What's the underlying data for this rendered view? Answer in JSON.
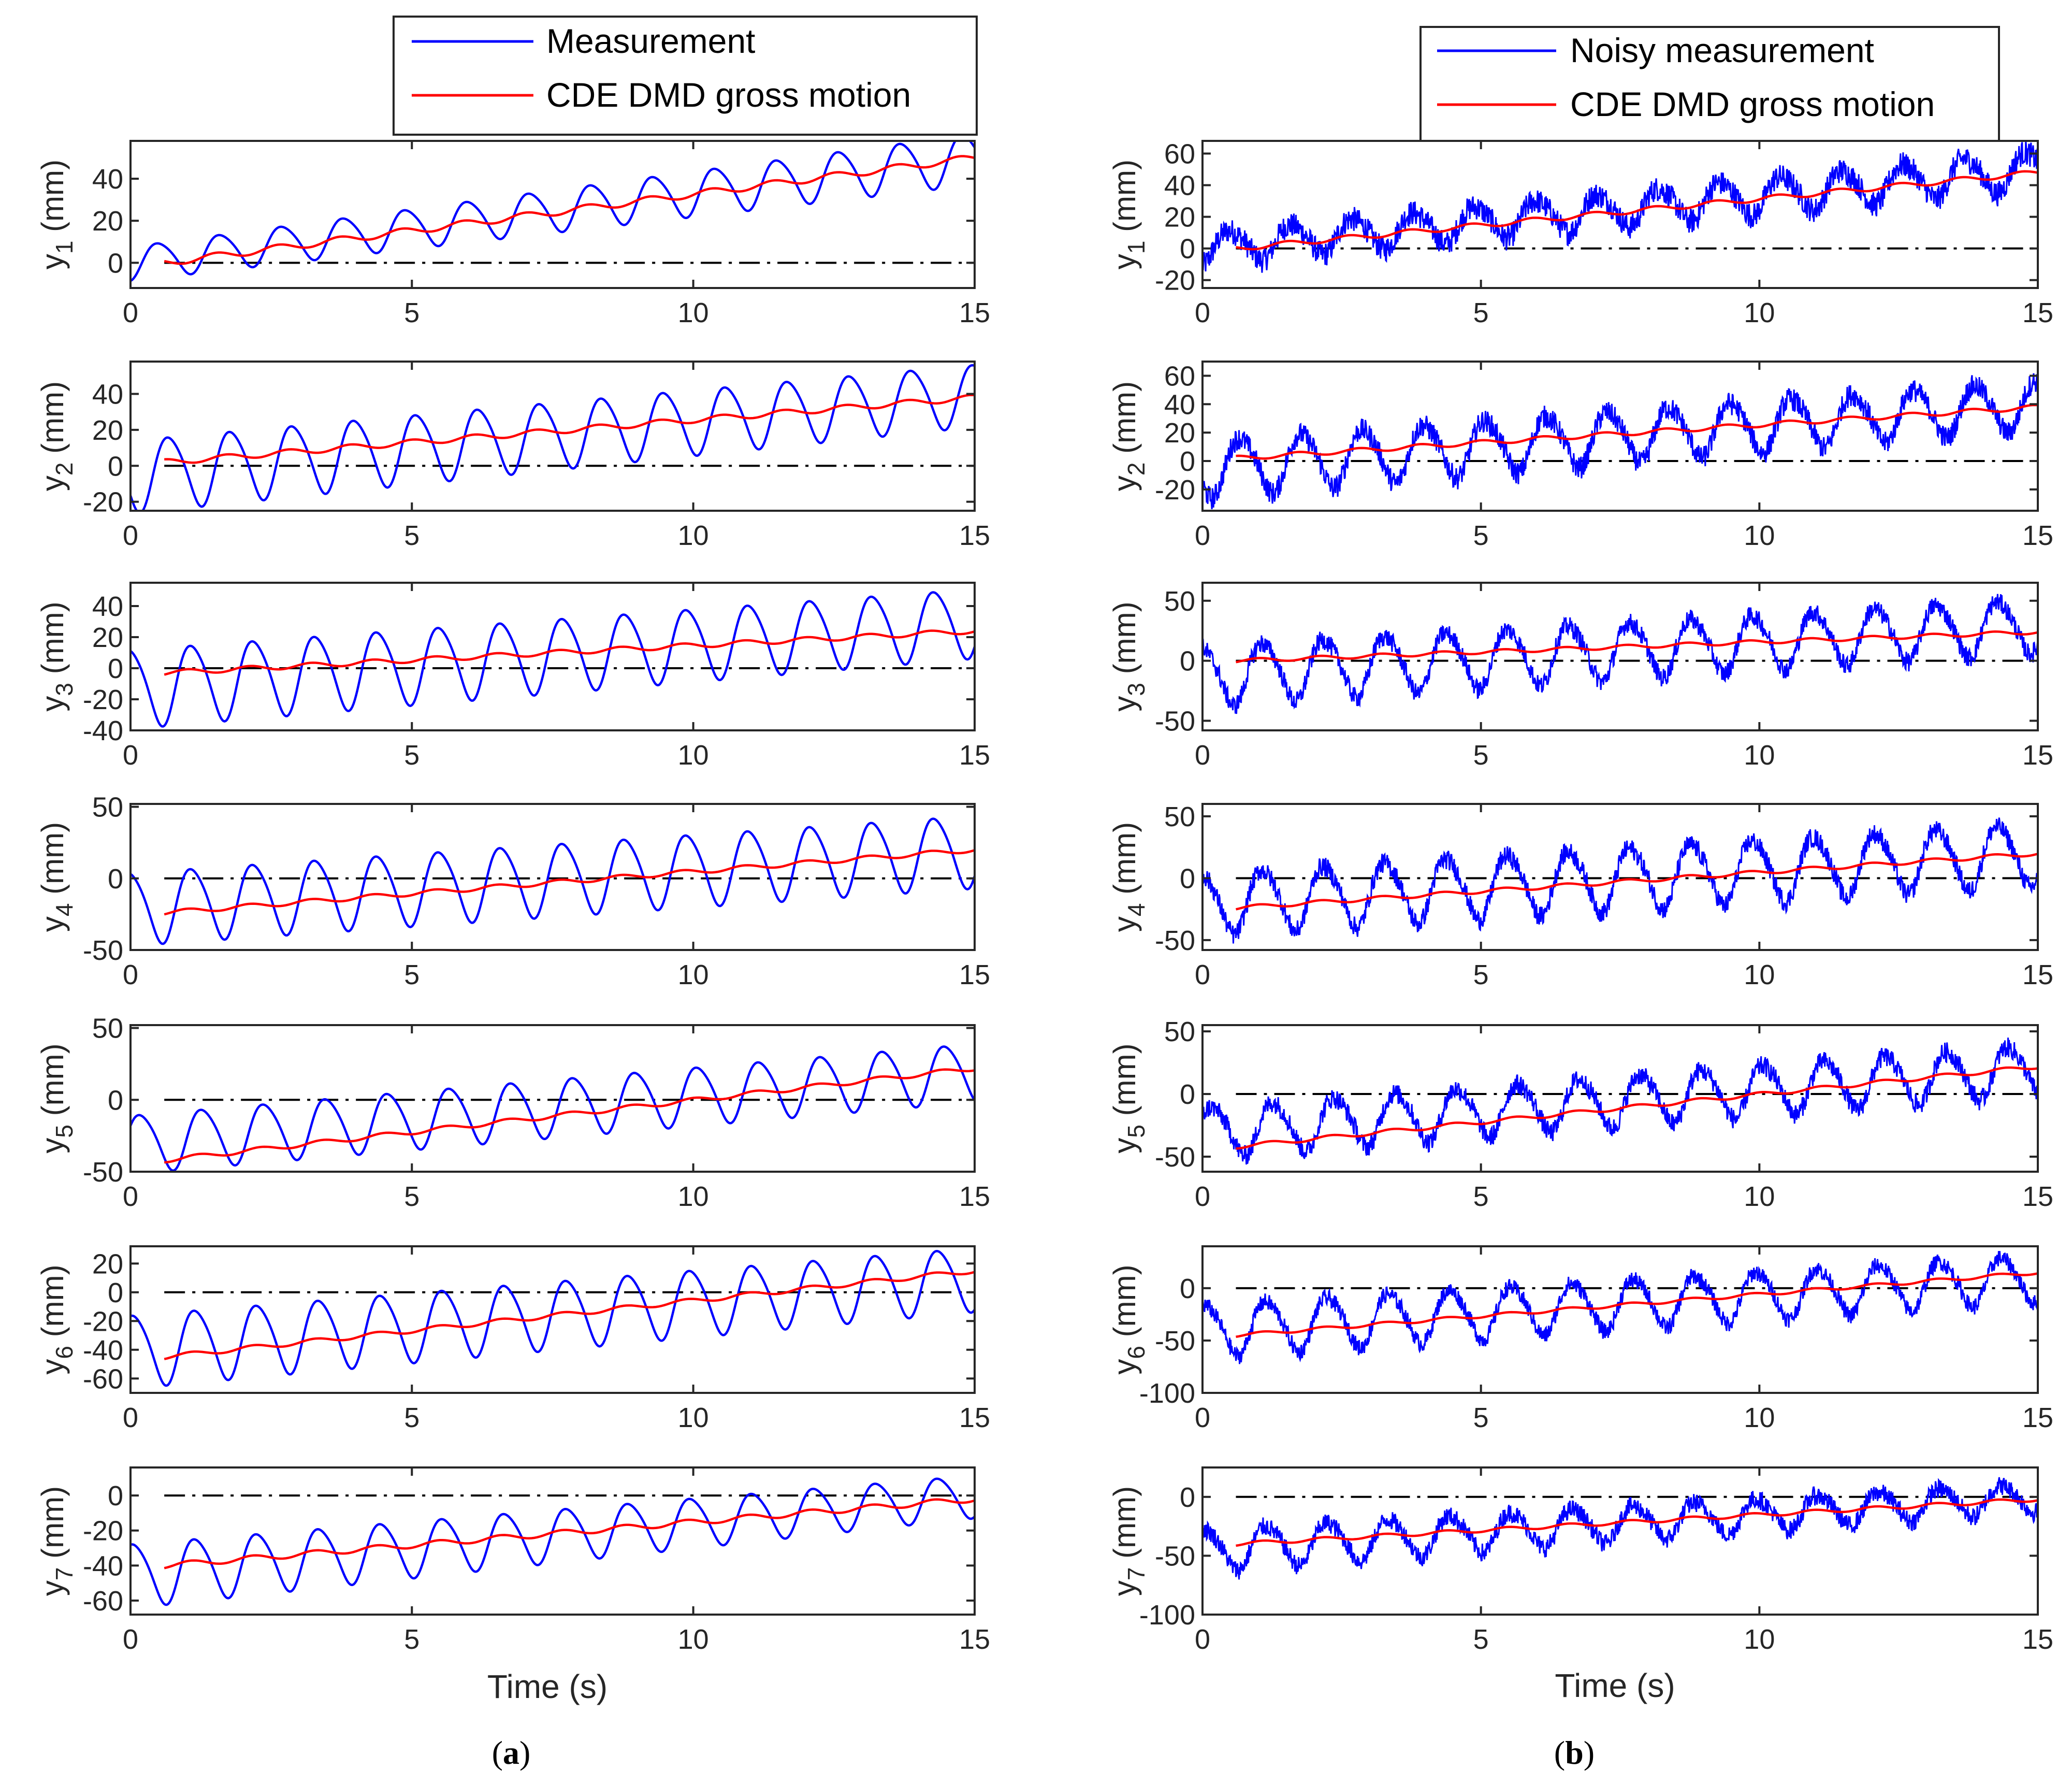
{
  "chart_data": [
    {
      "type": "line",
      "panel_label": "a",
      "title": "",
      "xlabel": "Time (s)",
      "xlim": [
        0,
        15
      ],
      "xticks": [
        0,
        5,
        10,
        15
      ],
      "legend": {
        "position": "top",
        "entries": [
          {
            "name": "Measurement",
            "color": "#0000ff"
          },
          {
            "name": "CDE DMD gross motion",
            "color": "#ff0000"
          }
        ]
      },
      "subplots": [
        {
          "ylabel": "y",
          "subscript": "1",
          "unit": " (mm)",
          "ylim": [
            -12,
            58
          ],
          "yticks": [
            0,
            20,
            40
          ],
          "measurement": {
            "mean": [
              0,
              50
            ],
            "amplitude": [
              8,
              12
            ],
            "period": 1.1,
            "phase": -1.3,
            "noise": 0
          },
          "gross_motion": {
            "t_start": 0.6,
            "values": [
              0,
              50
            ]
          }
        },
        {
          "ylabel": "y",
          "subscript": "2",
          "unit": " (mm)",
          "ylim": [
            -25,
            58
          ],
          "yticks": [
            -20,
            0,
            20,
            40
          ],
          "measurement": {
            "mean": [
              -5,
              40
            ],
            "amplitude": [
              20,
              17
            ],
            "period": 1.1,
            "phase": -2.4,
            "noise": 0
          },
          "gross_motion": {
            "t_start": 0.6,
            "values": [
              2,
              38
            ]
          }
        },
        {
          "ylabel": "y",
          "subscript": "3",
          "unit": " (mm)",
          "ylim": [
            -40,
            55
          ],
          "yticks": [
            -40,
            -20,
            0,
            20,
            40
          ],
          "measurement": {
            "mean": [
              -12,
              30
            ],
            "amplitude": [
              25,
              22
            ],
            "period": 1.1,
            "phase": 1.57,
            "noise": 0
          },
          "gross_motion": {
            "t_start": 0.6,
            "values": [
              -3,
              24
            ]
          }
        },
        {
          "ylabel": "y",
          "subscript": "4",
          "unit": " (mm)",
          "ylim": [
            -50,
            52
          ],
          "yticks": [
            -50,
            0,
            50
          ],
          "measurement": {
            "mean": [
              -20,
              20
            ],
            "amplitude": [
              25,
              25
            ],
            "period": 1.1,
            "phase": 1.57,
            "noise": 0
          },
          "gross_motion": {
            "t_start": 0.6,
            "values": [
              -24,
              20
            ]
          }
        },
        {
          "ylabel": "y",
          "subscript": "5",
          "unit": " (mm)",
          "ylim": [
            -50,
            52
          ],
          "yticks": [
            -50,
            0,
            50
          ],
          "measurement": {
            "mean": [
              -30,
              20
            ],
            "amplitude": [
              20,
              20
            ],
            "period": 1.1,
            "phase": 0.5,
            "noise": 0
          },
          "gross_motion": {
            "t_start": 0.6,
            "values": [
              -42,
              22
            ]
          }
        },
        {
          "ylabel": "y",
          "subscript": "6",
          "unit": " (mm)",
          "ylim": [
            -70,
            32
          ],
          "yticks": [
            -60,
            -40,
            -20,
            0,
            20
          ],
          "measurement": {
            "mean": [
              -40,
              10
            ],
            "amplitude": [
              25,
              22
            ],
            "period": 1.1,
            "phase": 1.2,
            "noise": 0
          },
          "gross_motion": {
            "t_start": 0.6,
            "values": [
              -45,
              15
            ]
          }
        },
        {
          "ylabel": "y",
          "subscript": "7",
          "unit": " (mm)",
          "ylim": [
            -68,
            16
          ],
          "yticks": [
            -60,
            -40,
            -20,
            0
          ],
          "measurement": {
            "mean": [
              -45,
              0
            ],
            "amplitude": [
              18,
              12
            ],
            "period": 1.1,
            "phase": 1.2,
            "noise": 0
          },
          "gross_motion": {
            "t_start": 0.6,
            "values": [
              -40,
              -2
            ]
          }
        }
      ]
    },
    {
      "type": "line",
      "panel_label": "b",
      "title": "",
      "xlabel": "Time (s)",
      "xlim": [
        0,
        15
      ],
      "xticks": [
        0,
        5,
        10,
        15
      ],
      "legend": {
        "position": "top",
        "entries": [
          {
            "name": "Noisy measurement",
            "color": "#0000ff"
          },
          {
            "name": "CDE DMD gross motion",
            "color": "#ff0000"
          }
        ]
      },
      "subplots": [
        {
          "ylabel": "y",
          "subscript": "1",
          "unit": " (mm)",
          "ylim": [
            -25,
            68
          ],
          "yticks": [
            -20,
            0,
            20,
            40,
            60
          ],
          "measurement": {
            "mean": [
              0,
              50
            ],
            "amplitude": [
              10,
              12
            ],
            "period": 1.1,
            "phase": -1.3,
            "noise": 8
          },
          "gross_motion": {
            "t_start": 0.6,
            "values": [
              0,
              48
            ]
          }
        },
        {
          "ylabel": "y",
          "subscript": "2",
          "unit": " (mm)",
          "ylim": [
            -35,
            70
          ],
          "yticks": [
            -20,
            0,
            20,
            40,
            60
          ],
          "measurement": {
            "mean": [
              -5,
              40
            ],
            "amplitude": [
              20,
              17
            ],
            "period": 1.1,
            "phase": -2.4,
            "noise": 8
          },
          "gross_motion": {
            "t_start": 0.6,
            "values": [
              2,
              38
            ]
          }
        },
        {
          "ylabel": "y",
          "subscript": "3",
          "unit": " (mm)",
          "ylim": [
            -58,
            65
          ],
          "yticks": [
            -50,
            0,
            50
          ],
          "measurement": {
            "mean": [
              -12,
              30
            ],
            "amplitude": [
              25,
              22
            ],
            "period": 1.1,
            "phase": 1.57,
            "noise": 8
          },
          "gross_motion": {
            "t_start": 0.6,
            "values": [
              0,
              24
            ]
          }
        },
        {
          "ylabel": "y",
          "subscript": "4",
          "unit": " (mm)",
          "ylim": [
            -58,
            60
          ],
          "yticks": [
            -50,
            0,
            50
          ],
          "measurement": {
            "mean": [
              -20,
              20
            ],
            "amplitude": [
              25,
              25
            ],
            "period": 1.1,
            "phase": 1.57,
            "noise": 8
          },
          "gross_motion": {
            "t_start": 0.6,
            "values": [
              -24,
              20
            ]
          }
        },
        {
          "ylabel": "y",
          "subscript": "5",
          "unit": " (mm)",
          "ylim": [
            -62,
            55
          ],
          "yticks": [
            -50,
            0,
            50
          ],
          "measurement": {
            "mean": [
              -30,
              20
            ],
            "amplitude": [
              20,
              20
            ],
            "period": 1.1,
            "phase": 0.5,
            "noise": 8
          },
          "gross_motion": {
            "t_start": 0.6,
            "values": [
              -42,
              22
            ]
          }
        },
        {
          "ylabel": "y",
          "subscript": "6",
          "unit": " (mm)",
          "ylim": [
            -100,
            40
          ],
          "yticks": [
            -100,
            -50,
            0
          ],
          "measurement": {
            "mean": [
              -40,
              10
            ],
            "amplitude": [
              25,
              22
            ],
            "period": 1.1,
            "phase": 1.2,
            "noise": 8
          },
          "gross_motion": {
            "t_start": 0.6,
            "values": [
              -45,
              15
            ]
          }
        },
        {
          "ylabel": "y",
          "subscript": "7",
          "unit": " (mm)",
          "ylim": [
            -100,
            25
          ],
          "yticks": [
            -100,
            -50,
            0
          ],
          "measurement": {
            "mean": [
              -45,
              0
            ],
            "amplitude": [
              18,
              12
            ],
            "period": 1.1,
            "phase": 1.2,
            "noise": 8
          },
          "gross_motion": {
            "t_start": 0.6,
            "values": [
              -40,
              -2
            ]
          }
        }
      ]
    }
  ]
}
